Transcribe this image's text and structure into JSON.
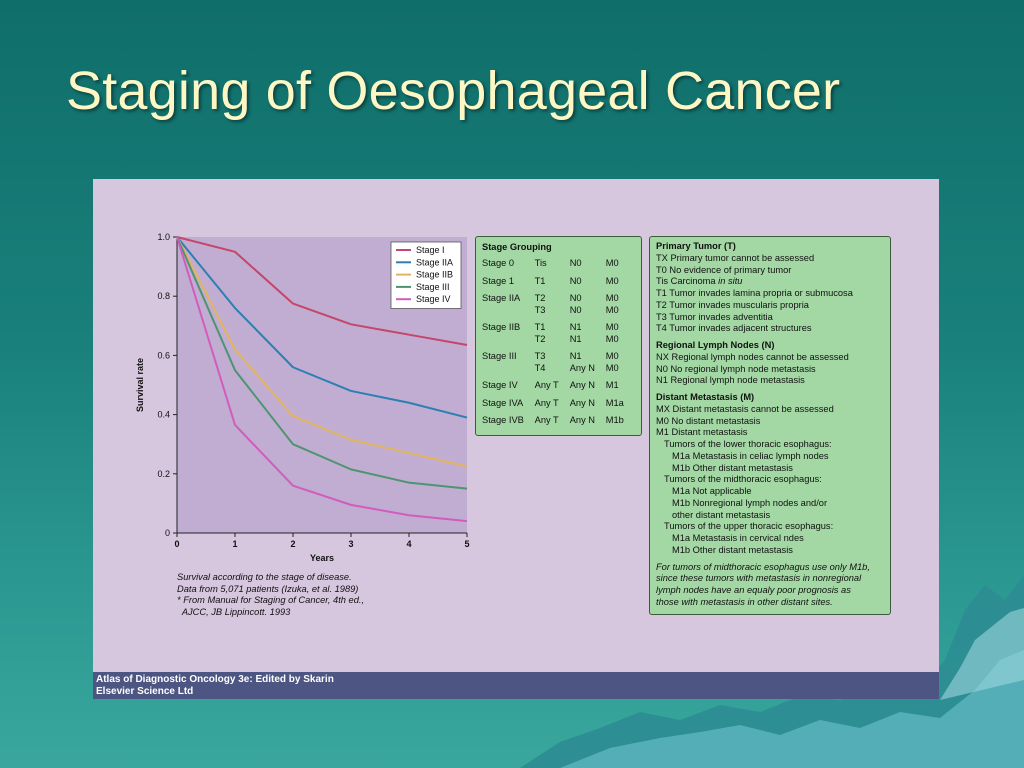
{
  "slide": {
    "title": "Staging of Oesophageal Cancer"
  },
  "chart_data": {
    "type": "line",
    "x": [
      0,
      1,
      2,
      3,
      4,
      5
    ],
    "xlabel": "Years",
    "ylabel": "Survival rate",
    "xlim": [
      0,
      5
    ],
    "ylim": [
      0,
      1.0
    ],
    "xticks": [
      "0",
      "1",
      "2",
      "3",
      "4",
      "5"
    ],
    "yticks": [
      "0",
      "0.2",
      "0.4",
      "0.6",
      "0.8",
      "1.0"
    ],
    "ytick_values": [
      0,
      0.2,
      0.4,
      0.6,
      0.8,
      1.0
    ],
    "grid": false,
    "legend_position": "top-right",
    "series": [
      {
        "name": "Stage I",
        "color": "#c4466a",
        "values": [
          1.0,
          0.95,
          0.775,
          0.705,
          0.67,
          0.635
        ]
      },
      {
        "name": "Stage IIA",
        "color": "#2d7fb3",
        "values": [
          1.0,
          0.76,
          0.56,
          0.48,
          0.44,
          0.39
        ]
      },
      {
        "name": "Stage IIB",
        "color": "#e2b45e",
        "values": [
          1.0,
          0.62,
          0.395,
          0.315,
          0.27,
          0.225
        ]
      },
      {
        "name": "Stage III",
        "color": "#4e9472",
        "values": [
          1.0,
          0.55,
          0.3,
          0.215,
          0.17,
          0.15
        ]
      },
      {
        "name": "Stage IV",
        "color": "#d15cbd",
        "values": [
          1.0,
          0.365,
          0.16,
          0.095,
          0.06,
          0.04
        ]
      }
    ],
    "note": [
      "Survival according to the stage of disease.",
      "Data from 5,071 patients (Izuka, et al. 1989)",
      "* From Manual for Staging of Cancer, 4th ed.,",
      "  AJCC, JB Lippincott. 1993"
    ]
  },
  "stage_grouping": {
    "title": "Stage Grouping",
    "rows": [
      {
        "stage": "Stage 0",
        "t": "Tis",
        "n": "N0",
        "m": "M0"
      },
      {
        "stage": "Stage 1",
        "t": "T1",
        "n": "N0",
        "m": "M0"
      },
      {
        "stage": "Stage IIA",
        "t": "T2\nT3",
        "n": "N0\nN0",
        "m": "M0\nM0"
      },
      {
        "stage": "Stage IIB",
        "t": "T1\nT2",
        "n": "N1\nN1",
        "m": "M0\nM0"
      },
      {
        "stage": "Stage III",
        "t": "T3\nT4",
        "n": "N1\nAny N",
        "m": "M0\nM0"
      },
      {
        "stage": "Stage IV",
        "t": "Any T",
        "n": "Any N",
        "m": "M1"
      },
      {
        "stage": "Stage IVA",
        "t": "Any T",
        "n": "Any N",
        "m": "M1a"
      },
      {
        "stage": "Stage IVB",
        "t": "Any T",
        "n": "Any N",
        "m": "M1b"
      }
    ]
  },
  "tnm": {
    "primary_tumor": {
      "title": "Primary Tumor (T)",
      "tx": "TX Primary tumor cannot be assessed",
      "t0": "T0  No evidence of primary tumor",
      "tis_prefix": "Tis Carcinoma ",
      "tis_italic": "in situ",
      "t1": "T1 Tumor invades lamina propria or submucosa",
      "t2": "T2 Tumor invades muscularis propria",
      "t3": "T3 Tumor invades adventitia",
      "t4": "T4 Tumor invades adjacent structures"
    },
    "lymph": {
      "title": "Regional Lymph Nodes (N)",
      "nx": "NX Regional lymph nodes cannot be assessed",
      "n0": "N0 No regional lymph node metastasis",
      "n1": "N1 Regional lymph node metastasis"
    },
    "distant": {
      "title": "Distant Metastasis (M)",
      "mx": "MX Distant metastasis cannot be assessed",
      "m0": "M0 No distant metastasis",
      "m1": "M1 Distant metastasis",
      "lower": "Tumors of the lower thoracic esophagus:",
      "lower_a": "M1a Metastasis in celiac lymph nodes",
      "lower_b": "M1b Other distant metastasis",
      "mid": "Tumors of the midthoracic esophagus:",
      "mid_a": "M1a Not applicable",
      "mid_b1": "M1b Nonregional lymph nodes and/or",
      "mid_b2": "other distant metastasis",
      "upper": "Tumors of the upper thoracic esophagus:",
      "upper_a": "M1a Metastasis in cervical ndes",
      "upper_b": "M1b Other distant metastasis"
    },
    "footnote": [
      "For tumors of midthoracic esophagus use only M1b,",
      "since these tumors with metastasis in nonregional",
      "lymph nodes have an equaly poor prognosis as",
      "those with metastasis in other distant sites."
    ]
  },
  "caption": {
    "line1": "Atlas of Diagnostic Oncology 3e: Edited by Skarin",
    "line2": "Elsevier Science Ltd"
  },
  "colors": {
    "background_teal": "#1a807b",
    "title_color": "#fdf7c6",
    "figure_background": "#d6c6de",
    "plot_area": "#c1add1",
    "table_box": "#a3d8a4",
    "caption_bar": "#4d5682"
  }
}
